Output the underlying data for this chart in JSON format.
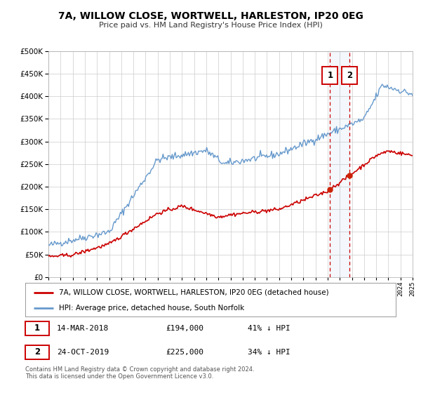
{
  "title": "7A, WILLOW CLOSE, WORTWELL, HARLESTON, IP20 0EG",
  "subtitle": "Price paid vs. HM Land Registry's House Price Index (HPI)",
  "legend_line1": "7A, WILLOW CLOSE, WORTWELL, HARLESTON, IP20 0EG (detached house)",
  "legend_line2": "HPI: Average price, detached house, South Norfolk",
  "point1_date": "14-MAR-2018",
  "point1_price": "£194,000",
  "point1_pct": "41% ↓ HPI",
  "point1_x": 2018.2,
  "point1_y": 194000,
  "point2_date": "24-OCT-2019",
  "point2_price": "£225,000",
  "point2_pct": "34% ↓ HPI",
  "point2_x": 2019.82,
  "point2_y": 225000,
  "vline1_x": 2018.2,
  "vline2_x": 2019.82,
  "red_line_color": "#cc0000",
  "blue_line_color": "#6699cc",
  "point_color": "#cc2200",
  "vline_color": "#cc0000",
  "grid_color": "#cccccc",
  "background_color": "#ffffff",
  "footnote": "Contains HM Land Registry data © Crown copyright and database right 2024.\nThis data is licensed under the Open Government Licence v3.0.",
  "ylim": [
    0,
    500000
  ],
  "xlim_start": 1995,
  "xlim_end": 2025
}
